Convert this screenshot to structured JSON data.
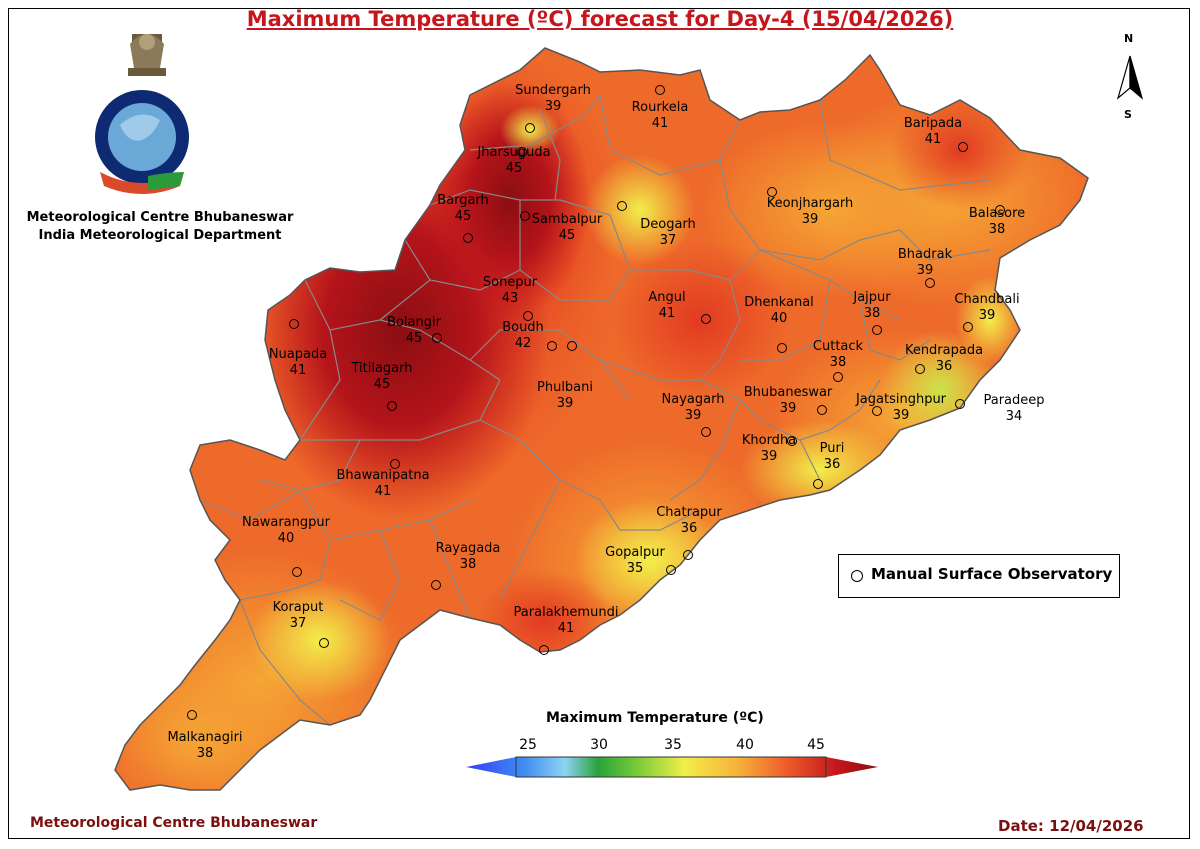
{
  "title": "Maximum Temperature (ºC) forecast for Day-4 (15/04/2026)",
  "org_lines": [
    "Meteorological Centre Bhubaneswar",
    "India Meteorological Department"
  ],
  "footer_left": "Meteorological Centre Bhubaneswar",
  "footer_right": "Date: 12/04/2026",
  "compass": {
    "north": "N",
    "south": "S"
  },
  "legend": {
    "station_label": "Manual Surface Observatory"
  },
  "colorbar": {
    "title": "Maximum Temperature (ºC)",
    "ticks": [
      "25",
      "30",
      "35",
      "40",
      "45"
    ],
    "colors": [
      "#3a3cff",
      "#3d8cf0",
      "#8ed3f5",
      "#2aa33a",
      "#7ccc3a",
      "#f2ee4a",
      "#f6b23a",
      "#ee5a2a",
      "#c4161c",
      "#8b0e12"
    ]
  },
  "cities": [
    {
      "name": "Sundergarh",
      "value": "39"
    },
    {
      "name": "Rourkela",
      "value": "41"
    },
    {
      "name": "Jharsuguda",
      "value": "45"
    },
    {
      "name": "Baripada",
      "value": "41"
    },
    {
      "name": "Keonjhargarh",
      "value": "39"
    },
    {
      "name": "Balasore",
      "value": "38"
    },
    {
      "name": "Bargarh",
      "value": "45"
    },
    {
      "name": "Sambalpur",
      "value": "45"
    },
    {
      "name": "Deogarh",
      "value": "37"
    },
    {
      "name": "Bhadrak",
      "value": "39"
    },
    {
      "name": "Sonepur",
      "value": "43"
    },
    {
      "name": "Chandbali",
      "value": "39"
    },
    {
      "name": "Jajpur",
      "value": "38"
    },
    {
      "name": "Angul",
      "value": "41"
    },
    {
      "name": "Dhenkanal",
      "value": "40"
    },
    {
      "name": "Bolangir",
      "value": "45"
    },
    {
      "name": "Boudh",
      "value": "42"
    },
    {
      "name": "Nuapada",
      "value": "41"
    },
    {
      "name": "Cuttack",
      "value": "38"
    },
    {
      "name": "Kendrapada",
      "value": "36"
    },
    {
      "name": "Titilagarh",
      "value": "45"
    },
    {
      "name": "Phulbani",
      "value": "39"
    },
    {
      "name": "Nayagarh",
      "value": "39"
    },
    {
      "name": "Bhubaneswar",
      "value": "39"
    },
    {
      "name": "Jagatsinghpur",
      "value": "39"
    },
    {
      "name": "Paradeep",
      "value": "34"
    },
    {
      "name": "Khordha",
      "value": "39"
    },
    {
      "name": "Puri",
      "value": "36"
    },
    {
      "name": "Bhawanipatna",
      "value": "41"
    },
    {
      "name": "Nawarangpur",
      "value": "40"
    },
    {
      "name": "Chatrapur",
      "value": "36"
    },
    {
      "name": "Rayagada",
      "value": "38"
    },
    {
      "name": "Gopalpur",
      "value": "35"
    },
    {
      "name": "Koraput",
      "value": "37"
    },
    {
      "name": "Paralakhemundi",
      "value": "41"
    },
    {
      "name": "Malkanagiri",
      "value": "38"
    }
  ]
}
